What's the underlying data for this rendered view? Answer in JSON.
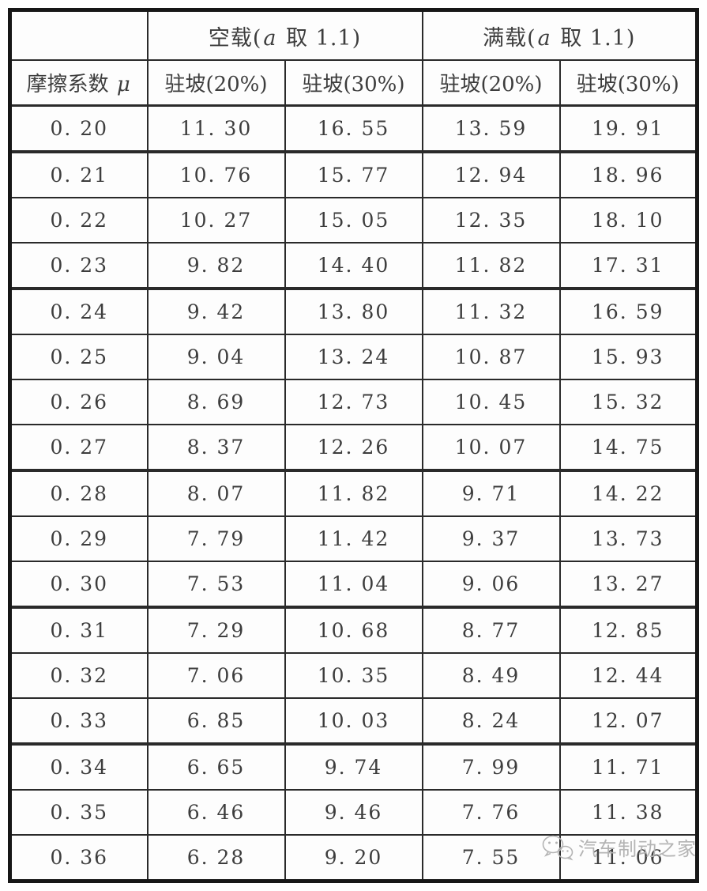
{
  "table": {
    "corner_label": "",
    "group_headers": {
      "empty_load": {
        "pre": "空载(",
        "var": "a",
        "post": " 取 1.1)"
      },
      "full_load": {
        "pre": "满载(",
        "var": "a",
        "post": " 取 1.1)"
      }
    },
    "friction_header": {
      "pre": "摩擦系数 ",
      "var": "μ"
    },
    "sub_headers": [
      "驻坡(20%)",
      "驻坡(30%)",
      "驻坡(20%)",
      "驻坡(30%)"
    ],
    "rows": [
      {
        "cells": [
          "0. 20",
          "11. 30",
          "16. 55",
          "13. 59",
          "19. 91"
        ],
        "thick_bottom": true
      },
      {
        "cells": [
          "0. 21",
          "10. 76",
          "15. 77",
          "12. 94",
          "18. 96"
        ],
        "thick_bottom": false
      },
      {
        "cells": [
          "0. 22",
          "10. 27",
          "15. 05",
          "12. 35",
          "18. 10"
        ],
        "thick_bottom": false
      },
      {
        "cells": [
          "0. 23",
          "9. 82",
          "14. 40",
          "11. 82",
          "17. 31"
        ],
        "thick_bottom": true
      },
      {
        "cells": [
          "0. 24",
          "9. 42",
          "13. 80",
          "11. 32",
          "16. 59"
        ],
        "thick_bottom": false
      },
      {
        "cells": [
          "0. 25",
          "9. 04",
          "13. 24",
          "10. 87",
          "15. 93"
        ],
        "thick_bottom": false
      },
      {
        "cells": [
          "0. 26",
          "8. 69",
          "12. 73",
          "10. 45",
          "15. 32"
        ],
        "thick_bottom": false
      },
      {
        "cells": [
          "0. 27",
          "8. 37",
          "12. 26",
          "10. 07",
          "14. 75"
        ],
        "thick_bottom": true
      },
      {
        "cells": [
          "0. 28",
          "8. 07",
          "11. 82",
          "9. 71",
          "14. 22"
        ],
        "thick_bottom": false
      },
      {
        "cells": [
          "0. 29",
          "7. 79",
          "11. 42",
          "9. 37",
          "13. 73"
        ],
        "thick_bottom": false
      },
      {
        "cells": [
          "0. 30",
          "7. 53",
          "11. 04",
          "9. 06",
          "13. 27"
        ],
        "thick_bottom": true
      },
      {
        "cells": [
          "0. 31",
          "7. 29",
          "10. 68",
          "8. 77",
          "12. 85"
        ],
        "thick_bottom": false
      },
      {
        "cells": [
          "0. 32",
          "7. 06",
          "10. 35",
          "8. 49",
          "12. 44"
        ],
        "thick_bottom": false
      },
      {
        "cells": [
          "0. 33",
          "6. 85",
          "10. 03",
          "8. 24",
          "12. 07"
        ],
        "thick_bottom": true
      },
      {
        "cells": [
          "0. 34",
          "6. 65",
          "9. 74",
          "7. 99",
          "11. 71"
        ],
        "thick_bottom": false
      },
      {
        "cells": [
          "0. 35",
          "6. 46",
          "9. 46",
          "7. 76",
          "11. 38"
        ],
        "thick_bottom": false
      },
      {
        "cells": [
          "0. 36",
          "6. 28",
          "9. 20",
          "7. 55",
          "11. 06"
        ],
        "thick_bottom": false
      }
    ]
  },
  "watermark": {
    "text": "汽车制动之家",
    "icon": "wechat-icon",
    "color": "#b4b4b4"
  },
  "colors": {
    "outer_border": "#171717",
    "inner_border": "#2a2a2a",
    "cell_background": "#fdfdfd",
    "text": "#3d3d3d"
  },
  "chart_data": {
    "type": "table",
    "title": "",
    "categories_label": {
      "pre": "摩擦系数 ",
      "var": "μ"
    },
    "mu": [
      0.2,
      0.21,
      0.22,
      0.23,
      0.24,
      0.25,
      0.26,
      0.27,
      0.28,
      0.29,
      0.3,
      0.31,
      0.32,
      0.33,
      0.34,
      0.35,
      0.36
    ],
    "series": [
      {
        "name": "空载(a 取 1.1) 驻坡(20%)",
        "values": [
          11.3,
          10.76,
          10.27,
          9.82,
          9.42,
          9.04,
          8.69,
          8.37,
          8.07,
          7.79,
          7.53,
          7.29,
          7.06,
          6.85,
          6.65,
          6.46,
          6.28
        ]
      },
      {
        "name": "空载(a 取 1.1) 驻坡(30%)",
        "values": [
          16.55,
          15.77,
          15.05,
          14.4,
          13.8,
          13.24,
          12.73,
          12.26,
          11.82,
          11.42,
          11.04,
          10.68,
          10.35,
          10.03,
          9.74,
          9.46,
          9.2
        ]
      },
      {
        "name": "满载(a 取 1.1) 驻坡(20%)",
        "values": [
          13.59,
          12.94,
          12.35,
          11.82,
          11.32,
          10.87,
          10.45,
          10.07,
          9.71,
          9.37,
          9.06,
          8.77,
          8.49,
          8.24,
          7.99,
          7.76,
          7.55
        ]
      },
      {
        "name": "满载(a 取 1.1) 驻坡(30%)",
        "values": [
          19.91,
          18.96,
          18.1,
          17.31,
          16.59,
          15.93,
          15.32,
          14.75,
          14.22,
          13.73,
          13.27,
          12.85,
          12.44,
          12.07,
          11.71,
          11.38,
          11.06
        ]
      }
    ]
  }
}
